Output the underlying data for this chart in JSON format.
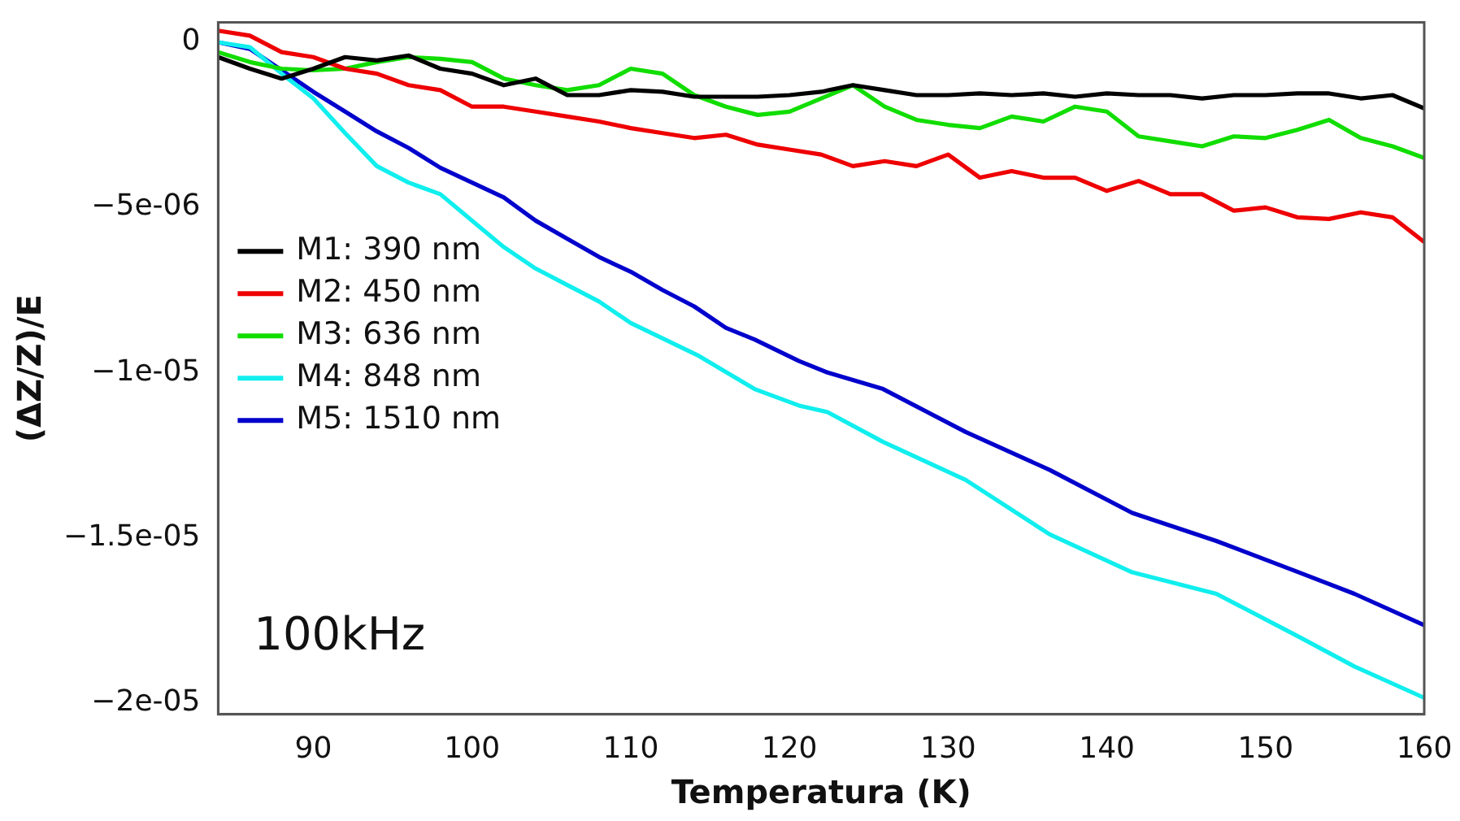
{
  "chart_data": {
    "type": "line",
    "xlabel": "Temperatura (K)",
    "ylabel": "(ΔZ/Z)/E",
    "annotations": [
      "100kHz"
    ],
    "legend": "center left",
    "grid": false,
    "marker": "none",
    "line_style": "solid",
    "xlim": [
      84,
      160
    ],
    "xticks": [
      90,
      100,
      110,
      120,
      130,
      140,
      150,
      160
    ],
    "ylim": [
      -2.035e-05,
      6e-07
    ],
    "yticks": [
      0,
      {
        "value": -5e-06,
        "label": "−5e-06"
      },
      {
        "value": -1e-05,
        "label": "−1e-05"
      },
      {
        "value": -1.5e-05,
        "label": "−1.5e-05"
      },
      {
        "value": -2e-05,
        "label": "−2e-05"
      }
    ],
    "x": [
      84,
      86,
      88,
      90,
      92,
      94,
      96,
      98,
      100,
      102,
      104,
      106,
      108,
      110,
      112,
      114,
      116,
      118,
      120,
      122,
      124,
      126,
      128,
      130,
      132,
      134,
      136,
      138,
      140,
      142,
      144,
      146,
      148,
      150,
      152,
      154,
      156,
      158,
      160
    ],
    "series": [
      {
        "name": "M1: 390 nm",
        "color": "#000000",
        "values": [
          -4.5e-07,
          -8e-07,
          -1.1e-06,
          -8e-07,
          -4.5e-07,
          -5.5e-07,
          -4e-07,
          -8e-07,
          -9.5e-07,
          -1.3e-06,
          -1.1e-06,
          -1.6e-06,
          -1.6e-06,
          -1.45e-06,
          -1.5e-06,
          -1.65e-06,
          -1.65e-06,
          -1.65e-06,
          -1.6e-06,
          -1.5e-06,
          -1.3e-06,
          -1.45e-06,
          -1.6e-06,
          -1.6e-06,
          -1.55e-06,
          -1.6e-06,
          -1.55e-06,
          -1.65e-06,
          -1.55e-06,
          -1.6e-06,
          -1.6e-06,
          -1.7e-06,
          -1.6e-06,
          -1.6e-06,
          -1.55e-06,
          -1.55e-06,
          -1.7e-06,
          -1.6e-06,
          -2e-06
        ]
      },
      {
        "name": "M2: 450 nm",
        "color": "#ee0000",
        "values": [
          3.5e-07,
          2e-07,
          -3e-07,
          -4.5e-07,
          -8e-07,
          -9.5e-07,
          -1.3e-06,
          -1.45e-06,
          -1.95e-06,
          -1.95e-06,
          -2.1e-06,
          -2.25e-06,
          -2.4e-06,
          -2.6e-06,
          -2.75e-06,
          -2.9e-06,
          -2.8e-06,
          -3.1e-06,
          -3.25e-06,
          -3.4e-06,
          -3.75e-06,
          -3.6e-06,
          -3.75e-06,
          -3.4e-06,
          -4.1e-06,
          -3.9e-06,
          -4.1e-06,
          -4.1e-06,
          -4.5e-06,
          -4.2e-06,
          -4.6e-06,
          -4.6e-06,
          -5.1e-06,
          -5e-06,
          -5.3e-06,
          -5.35e-06,
          -5.15e-06,
          -5.3e-06,
          -6.05e-06
        ]
      },
      {
        "name": "M3: 636 nm",
        "color": "#11dd00",
        "values": [
          -3e-07,
          -6e-07,
          -8e-07,
          -8.5e-07,
          -8e-07,
          -6e-07,
          -4.5e-07,
          -5e-07,
          -6e-07,
          -1.1e-06,
          -1.3e-06,
          -1.45e-06,
          -1.3e-06,
          -8e-07,
          -9.5e-07,
          -1.6e-06,
          -1.95e-06,
          -2.2e-06,
          -2.1e-06,
          -1.7e-06,
          -1.3e-06,
          -1.95e-06,
          -2.35e-06,
          -2.5e-06,
          -2.6e-06,
          -2.25e-06,
          -2.4e-06,
          -1.95e-06,
          -2.1e-06,
          -2.85e-06,
          -3e-06,
          -3.15e-06,
          -2.85e-06,
          -2.9e-06,
          -2.65e-06,
          -2.35e-06,
          -2.9e-06,
          -3.15e-06,
          -3.5e-06
        ]
      },
      {
        "name": "M4: 848 nm",
        "color": "#11eeee",
        "x": [
          84,
          86,
          88,
          90,
          92,
          94,
          96,
          98,
          100,
          102,
          104,
          106,
          108,
          110,
          114.3,
          117.8,
          120.6,
          122.4,
          125.9,
          131.1,
          136.4,
          141.6,
          146.9,
          152.1,
          155.6,
          160
        ],
        "values": [
          0,
          -1.5e-07,
          -9.5e-07,
          -1.7e-06,
          -2.75e-06,
          -3.75e-06,
          -4.25e-06,
          -4.6e-06,
          -5.4e-06,
          -6.2e-06,
          -6.85e-06,
          -7.35e-06,
          -7.85e-06,
          -8.5e-06,
          -9.5e-06,
          -1.05e-05,
          -1.1e-05,
          -1.12e-05,
          -1.21e-05,
          -1.325e-05,
          -1.49e-05,
          -1.605e-05,
          -1.67e-05,
          -1.8e-05,
          -1.89e-05,
          -1.985e-05
        ]
      },
      {
        "name": "M5: 1510 nm",
        "color": "#0000cc",
        "x": [
          84,
          86,
          88,
          90,
          92,
          94,
          96,
          98,
          100,
          102,
          104,
          106,
          108,
          110,
          112,
          114,
          116,
          117.8,
          120.6,
          122.4,
          125.9,
          131.1,
          136.4,
          141.6,
          146.9,
          152.1,
          155.6,
          160
        ],
        "values": [
          0,
          -2e-07,
          -8.5e-07,
          -1.5e-06,
          -2.1e-06,
          -2.7e-06,
          -3.2e-06,
          -3.8e-06,
          -4.25e-06,
          -4.7e-06,
          -5.4e-06,
          -5.95e-06,
          -6.5e-06,
          -6.95e-06,
          -7.5e-06,
          -8e-06,
          -8.65e-06,
          -9e-06,
          -9.65e-06,
          -1e-05,
          -1.05e-05,
          -1.18e-05,
          -1.295e-05,
          -1.425e-05,
          -1.51e-05,
          -1.605e-05,
          -1.67e-05,
          -1.765e-05
        ]
      }
    ]
  }
}
